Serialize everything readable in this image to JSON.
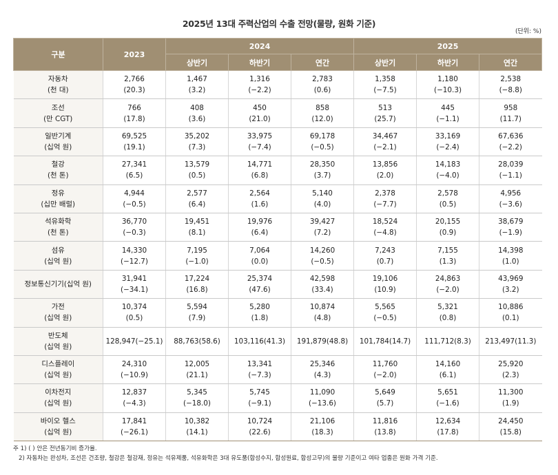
{
  "title": "2025년 13대 주력산업의 수출 전망(물량, 원화 기준)",
  "unit": "(단위: %)",
  "headers": {
    "category": "구분",
    "y2023": "2023",
    "y2024": "2024",
    "y2025": "2025",
    "h1": "상반기",
    "h2": "하반기",
    "annual": "연간"
  },
  "rows": [
    {
      "name": "자동차",
      "unit": "(천 대)",
      "cells": [
        [
          "2,766",
          "(20.3)"
        ],
        [
          "1,467",
          "(3.2)"
        ],
        [
          "1,316",
          "(−2.2)"
        ],
        [
          "2,783",
          "(0.6)"
        ],
        [
          "1,358",
          "(−7.5)"
        ],
        [
          "1,180",
          "(−10.3)"
        ],
        [
          "2,538",
          "(−8.8)"
        ]
      ]
    },
    {
      "name": "조선",
      "unit": "(만 CGT)",
      "cells": [
        [
          "766",
          "(17.8)"
        ],
        [
          "408",
          "(3.6)"
        ],
        [
          "450",
          "(21.0)"
        ],
        [
          "858",
          "(12.0)"
        ],
        [
          "513",
          "(25.7)"
        ],
        [
          "445",
          "(−1.1)"
        ],
        [
          "958",
          "(11.7)"
        ]
      ]
    },
    {
      "name": "일반기계",
      "unit": "(십억 원)",
      "cells": [
        [
          "69,525",
          "(19.1)"
        ],
        [
          "35,202",
          "(7.3)"
        ],
        [
          "33,975",
          "(−7.4)"
        ],
        [
          "69,178",
          "(−0.5)"
        ],
        [
          "34,467",
          "(−2.1)"
        ],
        [
          "33,169",
          "(−2.4)"
        ],
        [
          "67,636",
          "(−2.2)"
        ]
      ]
    },
    {
      "name": "철강",
      "unit": "(천 톤)",
      "cells": [
        [
          "27,341",
          "(6.5)"
        ],
        [
          "13,579",
          "(0.5)"
        ],
        [
          "14,771",
          "(6.8)"
        ],
        [
          "28,350",
          "(3.7)"
        ],
        [
          "13,856",
          "(2.0)"
        ],
        [
          "14,183",
          "(−4.0)"
        ],
        [
          "28,039",
          "(−1.1)"
        ]
      ]
    },
    {
      "name": "정유",
      "unit": "(십만 배럴)",
      "cells": [
        [
          "4,944",
          "(−0.5)"
        ],
        [
          "2,577",
          "(6.4)"
        ],
        [
          "2,564",
          "(1.6)"
        ],
        [
          "5,140",
          "(4.0)"
        ],
        [
          "2,378",
          "(−7.7)"
        ],
        [
          "2,578",
          "(0.5)"
        ],
        [
          "4,956",
          "(−3.6)"
        ]
      ]
    },
    {
      "name": "석유화학",
      "unit": "(천 톤)",
      "cells": [
        [
          "36,770",
          "(−0.3)"
        ],
        [
          "19,451",
          "(8.1)"
        ],
        [
          "19,976",
          "(6.4)"
        ],
        [
          "39,427",
          "(7.2)"
        ],
        [
          "18,524",
          "(−4.8)"
        ],
        [
          "20,155",
          "(0.9)"
        ],
        [
          "38,679",
          "(−1.9)"
        ]
      ]
    },
    {
      "name": "섬유",
      "unit": "(십억 원)",
      "cells": [
        [
          "14,330",
          "(−12.7)"
        ],
        [
          "7,195",
          "(−1.0)"
        ],
        [
          "7,064",
          "(0.0)"
        ],
        [
          "14,260",
          "(−0.5)"
        ],
        [
          "7,243",
          "(0.7)"
        ],
        [
          "7,155",
          "(1.3)"
        ],
        [
          "14,398",
          "(1.0)"
        ]
      ]
    },
    {
      "name": "정보통신기기(십억 원)",
      "unit": "",
      "cells": [
        [
          "31,941",
          "(−34.1)"
        ],
        [
          "17,224",
          "(16.8)"
        ],
        [
          "25,374",
          "(47.6)"
        ],
        [
          "42,598",
          "(33.4)"
        ],
        [
          "19,106",
          "(10.9)"
        ],
        [
          "24,863",
          "(−2.0)"
        ],
        [
          "43,969",
          "(3.2)"
        ]
      ]
    },
    {
      "name": "가전",
      "unit": "(십억 원)",
      "cells": [
        [
          "10,374",
          "(0.5)"
        ],
        [
          "5,594",
          "(7.9)"
        ],
        [
          "5,280",
          "(1.8)"
        ],
        [
          "10,874",
          "(4.8)"
        ],
        [
          "5,565",
          "(−0.5)"
        ],
        [
          "5,321",
          "(0.8)"
        ],
        [
          "10,886",
          "(0.1)"
        ]
      ]
    },
    {
      "name": "반도체",
      "unit": "(십억 원)",
      "cells": [
        [
          "128,947(−25.1)",
          ""
        ],
        [
          "88,763(58.6)",
          ""
        ],
        [
          "103,116(41.3)",
          ""
        ],
        [
          "191,879(48.8)",
          ""
        ],
        [
          "101,784(14.7)",
          ""
        ],
        [
          "111,712(8.3)",
          ""
        ],
        [
          "213,497(11.3)",
          ""
        ]
      ]
    },
    {
      "name": "디스플레이",
      "unit": "(십억 원)",
      "cells": [
        [
          "24,310",
          "(−10.9)"
        ],
        [
          "12,005",
          "(21.1)"
        ],
        [
          "13,341",
          "(−7.3)"
        ],
        [
          "25,346",
          "(4.3)"
        ],
        [
          "11,760",
          "(−2.0)"
        ],
        [
          "14,160",
          "(6.1)"
        ],
        [
          "25,920",
          "(2.3)"
        ]
      ]
    },
    {
      "name": "이차전지",
      "unit": "(십억 원)",
      "cells": [
        [
          "12,837",
          "(−4.3)"
        ],
        [
          "5,345",
          "(−18.0)"
        ],
        [
          "5,745",
          "(−9.1)"
        ],
        [
          "11,090",
          "(−13.6)"
        ],
        [
          "5,649",
          "(5.7)"
        ],
        [
          "5,651",
          "(−1.6)"
        ],
        [
          "11,300",
          "(1.9)"
        ]
      ]
    },
    {
      "name": "바이오 헬스",
      "unit": "(십억 원)",
      "cells": [
        [
          "17,841",
          "(−26.1)"
        ],
        [
          "10,382",
          "(14.1)"
        ],
        [
          "10,724",
          "(22.6)"
        ],
        [
          "21,106",
          "(18.3)"
        ],
        [
          "11,816",
          "(13.8)"
        ],
        [
          "12,634",
          "(17.8)"
        ],
        [
          "24,450",
          "(15.8)"
        ]
      ]
    }
  ],
  "notes": [
    "주 1) ( ) 안은 전년동기비 증가율.",
    "   2) 자동차는 완성차, 조선은 건조량, 철강은 철강재, 정유는 석유제품, 석유화학은 3대 유도품(합성수지, 합성원료, 합성고무)의 물량 기준이고 여타 업종은 원화 가격 기준."
  ],
  "colors": {
    "header_bg": "#a08f73",
    "first_col_bg": "#f7f5f1"
  }
}
